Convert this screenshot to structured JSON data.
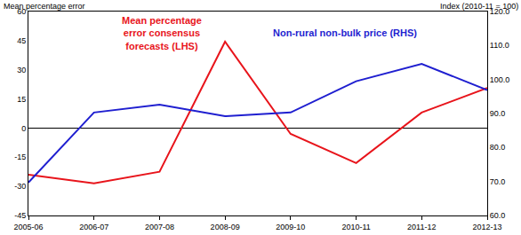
{
  "chart_data": {
    "type": "line",
    "y_label": "Mean percentage error",
    "y2_label": "Index (2010-11 = 100)",
    "categories": [
      "2005-06",
      "2006-07",
      "2007-08",
      "2008-09",
      "2009-10",
      "2010-11",
      "2011-12",
      "2012-13"
    ],
    "ylim": [
      -45,
      60
    ],
    "yticks": [
      -45,
      -30,
      -15,
      0,
      15,
      30,
      45,
      60
    ],
    "y2lim": [
      60,
      120
    ],
    "y2ticks": [
      {
        "value": 60,
        "label": "60.0"
      },
      {
        "value": 70,
        "label": "70.0"
      },
      {
        "value": 80,
        "label": "80.0"
      },
      {
        "value": 90,
        "label": "90.0"
      },
      {
        "value": 100,
        "label": "100.0"
      },
      {
        "value": 110,
        "label": "110.0"
      },
      {
        "value": 120,
        "label": "120.0"
      }
    ],
    "grid": false,
    "series": [
      {
        "name": "Mean percentage error consensus forecasts (LHS)",
        "color": "#e8141b",
        "values": [
          -24,
          -28.4,
          -22.5,
          44.5,
          -3,
          -18,
          8,
          20.6
        ]
      },
      {
        "name": "Non-rural non-bulk price (RHS)",
        "color": "#1f1fd0",
        "axis": "y2",
        "values": [
          69.7,
          90.3,
          92.6,
          89.2,
          90.3,
          99.5,
          104.6,
          96.9
        ]
      }
    ]
  }
}
